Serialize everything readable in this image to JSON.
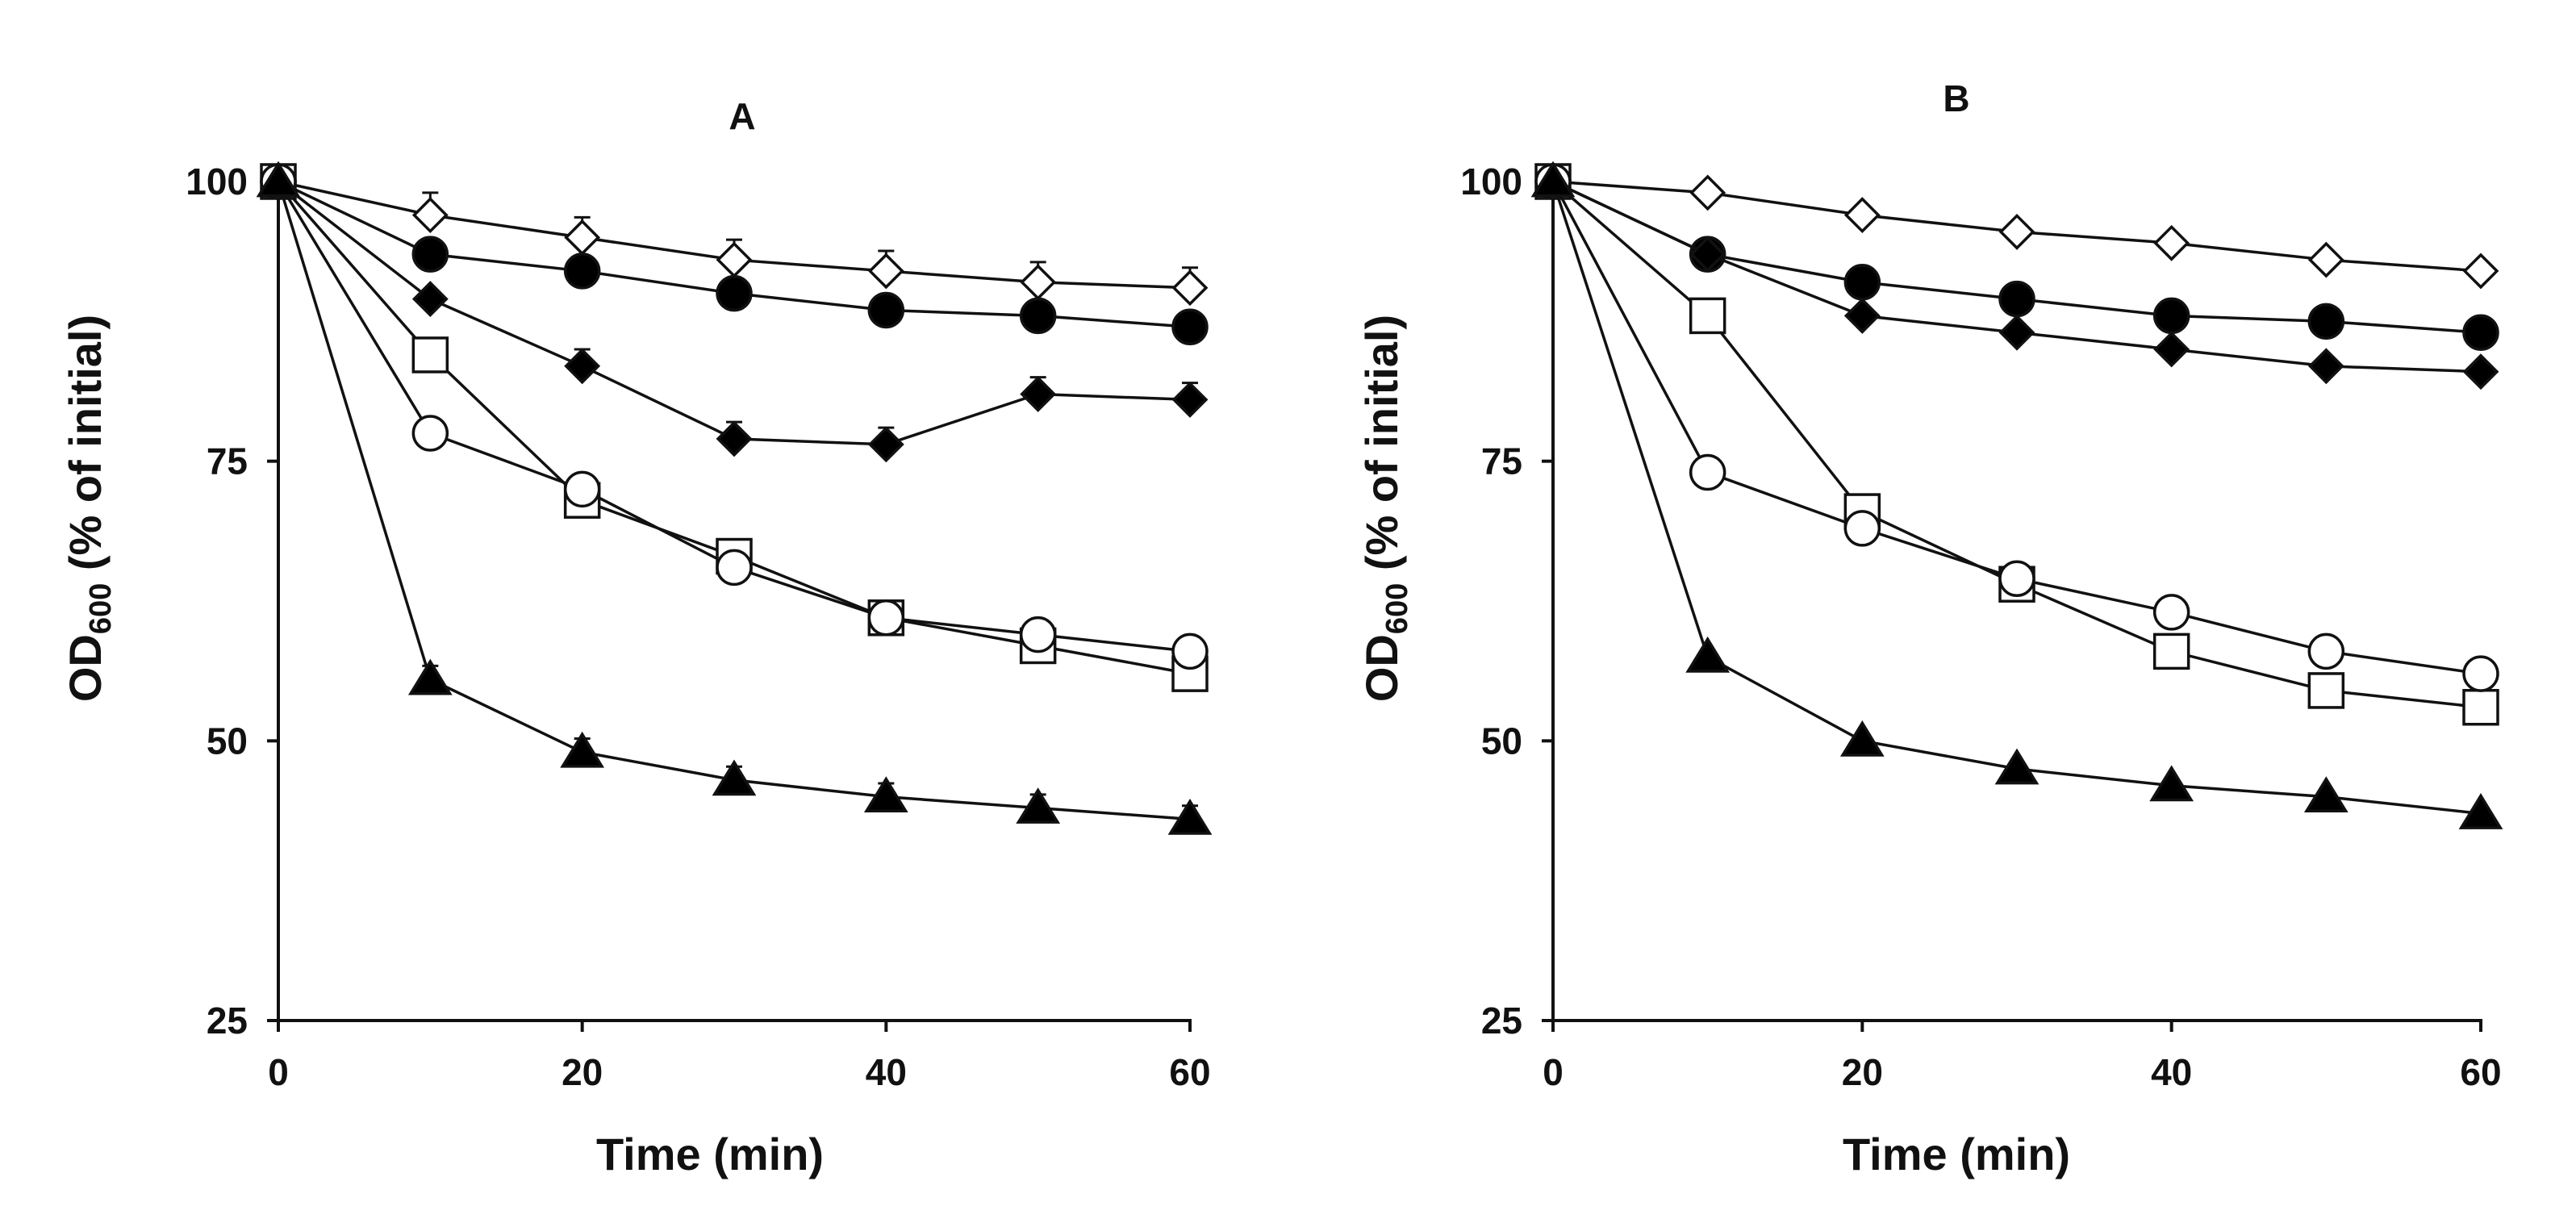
{
  "chart_data": [
    {
      "type": "line",
      "title": "A",
      "xlabel": "Time (min)",
      "ylabel": {
        "main": "OD",
        "subscript": "600",
        "suffix": " (% of initial)"
      },
      "xlim": [
        0,
        60
      ],
      "ylim": [
        25,
        100
      ],
      "xticks": [
        "0",
        "20",
        "40",
        "60"
      ],
      "yticks": [
        "25",
        "50",
        "75",
        "100"
      ],
      "x": [
        0,
        10,
        20,
        30,
        40,
        50,
        60
      ],
      "series": [
        {
          "name": "open diamond",
          "marker": "diamond",
          "filled": false,
          "values": [
            100,
            97,
            95,
            93,
            92,
            91,
            90.5
          ],
          "error": [
            0,
            2,
            1.8,
            1.8,
            1.8,
            1.8,
            1.8
          ]
        },
        {
          "name": "filled circle",
          "marker": "circle",
          "filled": true,
          "values": [
            100,
            93.5,
            92,
            90,
            88.5,
            88,
            87
          ]
        },
        {
          "name": "filled diamond",
          "marker": "diamond",
          "filled": true,
          "values": [
            100,
            89.5,
            83.5,
            77,
            76.5,
            81,
            80.5
          ],
          "error": [
            0,
            0,
            1.5,
            1.5,
            1.5,
            1.5,
            1.5
          ]
        },
        {
          "name": "open square",
          "marker": "square",
          "filled": false,
          "values": [
            100,
            84.5,
            71.5,
            66.5,
            61,
            58.5,
            56
          ]
        },
        {
          "name": "open circle",
          "marker": "circle",
          "filled": false,
          "values": [
            100,
            77.5,
            72.5,
            65.5,
            61,
            59.5,
            58
          ]
        },
        {
          "name": "filled triangle",
          "marker": "triangle",
          "filled": true,
          "values": [
            100,
            55.5,
            49,
            46.5,
            45,
            44,
            43
          ],
          "error": [
            0,
            1.2,
            1.2,
            1.2,
            1.2,
            1.2,
            1.2
          ]
        }
      ]
    },
    {
      "type": "line",
      "title": "B",
      "xlabel": "Time (min)",
      "ylabel": {
        "main": "OD",
        "subscript": "600",
        "suffix": " (% of initial)"
      },
      "xlim": [
        0,
        60
      ],
      "ylim": [
        25,
        100
      ],
      "xticks": [
        "0",
        "20",
        "40",
        "60"
      ],
      "yticks": [
        "25",
        "50",
        "75",
        "100"
      ],
      "x": [
        0,
        10,
        20,
        30,
        40,
        50,
        60
      ],
      "series": [
        {
          "name": "open diamond",
          "marker": "diamond",
          "filled": false,
          "values": [
            100,
            99,
            97,
            95.5,
            94.5,
            93,
            92
          ]
        },
        {
          "name": "filled circle",
          "marker": "circle",
          "filled": true,
          "values": [
            100,
            93.5,
            91,
            89.5,
            88,
            87.5,
            86.5
          ]
        },
        {
          "name": "filled diamond",
          "marker": "diamond",
          "filled": true,
          "values": [
            100,
            93.5,
            88,
            86.5,
            85,
            83.5,
            83
          ]
        },
        {
          "name": "open square",
          "marker": "square",
          "filled": false,
          "values": [
            100,
            88,
            70.5,
            64,
            58,
            54.5,
            53
          ]
        },
        {
          "name": "open circle",
          "marker": "circle",
          "filled": false,
          "values": [
            100,
            74,
            69,
            64.5,
            61.5,
            58,
            56
          ]
        },
        {
          "name": "filled triangle",
          "marker": "triangle",
          "filled": true,
          "values": [
            100,
            57.5,
            50,
            47.5,
            46,
            45,
            43.5
          ]
        }
      ]
    }
  ]
}
